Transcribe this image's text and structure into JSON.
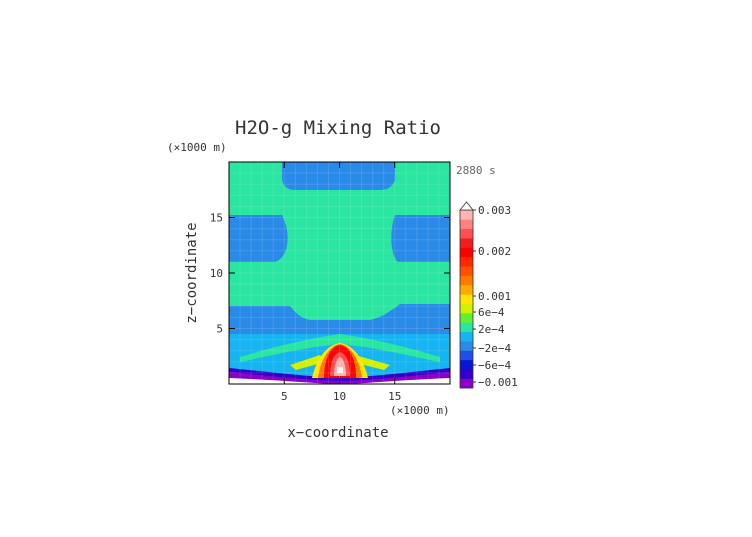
{
  "chart_data": {
    "type": "heatmap",
    "title": "H2O-g Mixing Ratio",
    "time_label": "2880 s",
    "xlabel": "x−coordinate",
    "ylabel": "z−coordinate",
    "x_unit": "(×1000 m)",
    "y_unit": "(×1000 m)",
    "xlim": [
      0,
      20
    ],
    "ylim": [
      0,
      20
    ],
    "x_ticks": [
      {
        "value": 5,
        "label": "5"
      },
      {
        "value": 10,
        "label": "10"
      },
      {
        "value": 15,
        "label": "15"
      }
    ],
    "y_ticks": [
      {
        "value": 5,
        "label": "5"
      },
      {
        "value": 10,
        "label": "10"
      },
      {
        "value": 15,
        "label": "15"
      }
    ],
    "colorbar": {
      "levels": [
        {
          "color": "#8a00c8"
        },
        {
          "color": "#3200c8"
        },
        {
          "color": "#0a14d2"
        },
        {
          "color": "#1e50e6"
        },
        {
          "color": "#2a8ae8"
        },
        {
          "color": "#16b4f0"
        },
        {
          "color": "#2ae6a0"
        },
        {
          "color": "#64ee32"
        },
        {
          "color": "#d2f000"
        },
        {
          "color": "#ffe600"
        },
        {
          "color": "#ffaa00"
        },
        {
          "color": "#ff7800"
        },
        {
          "color": "#ff5000"
        },
        {
          "color": "#ff2800"
        },
        {
          "color": "#ff0000"
        },
        {
          "color": "#f01e1e"
        },
        {
          "color": "#ff5050"
        },
        {
          "color": "#ff8282"
        },
        {
          "color": "#ffb4b4"
        }
      ],
      "labels": [
        {
          "value": 0.003,
          "label": "0.003"
        },
        {
          "value": 0.002,
          "label": "0.002"
        },
        {
          "value": 0.001,
          "label": "0.001"
        },
        {
          "value": 0.0006,
          "label": "6e−4"
        },
        {
          "value": 0.0002,
          "label": "2e−4"
        },
        {
          "value": -0.0002,
          "label": "−2e−4"
        },
        {
          "value": -0.0006,
          "label": "−6e−4"
        },
        {
          "value": -0.001,
          "label": "−0.001"
        }
      ],
      "extend": "top"
    },
    "colors": {
      "blue_band": "#2a8ae8",
      "green_band": "#2ae6a0",
      "core": "#ff0000"
    }
  }
}
